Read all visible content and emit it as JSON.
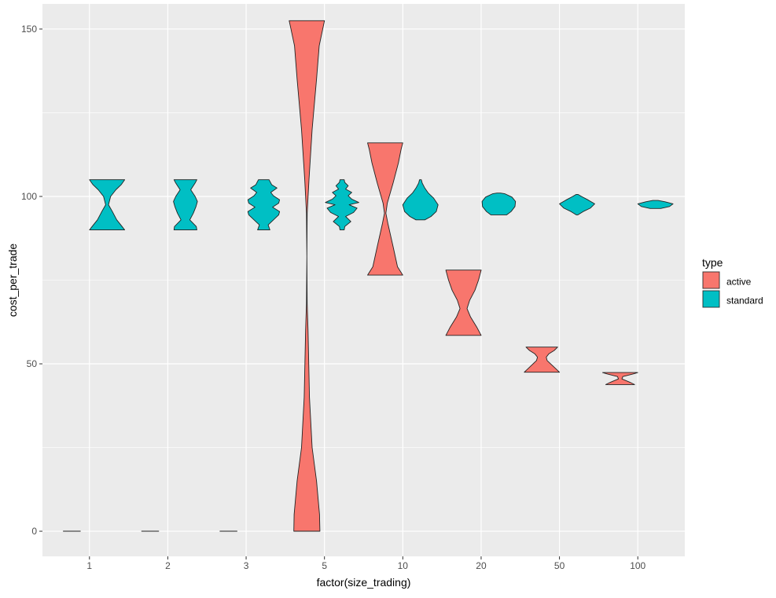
{
  "chart_data": {
    "type": "violin",
    "title": "",
    "xlabel": "factor(size_trading)",
    "ylabel": "cost_per_trade",
    "categories": [
      "1",
      "2",
      "3",
      "5",
      "10",
      "20",
      "50",
      "100"
    ],
    "ylim": [
      -7.5,
      157.5
    ],
    "yticks": [
      0,
      50,
      100,
      150
    ],
    "grid": true,
    "legend": {
      "title": "type",
      "placement": "right",
      "entries": [
        "active",
        "standard"
      ]
    },
    "colors": {
      "active": "#F8766D",
      "standard": "#00BFC4",
      "panel": "#EBEBEB",
      "grid": "#FFFFFF"
    },
    "series": [
      {
        "name": "active",
        "violins": [
          {
            "category": "1",
            "profile": [
              [
                0,
                0.5
              ],
              [
                0,
                0.5
              ]
            ]
          },
          {
            "category": "2",
            "profile": [
              [
                0,
                0.5
              ],
              [
                0,
                0.5
              ]
            ]
          },
          {
            "category": "3",
            "profile": [
              [
                0,
                0.5
              ],
              [
                0,
                0.5
              ]
            ]
          },
          {
            "category": "5",
            "profile": [
              [
                0,
                0.74
              ],
              [
                5,
                0.72
              ],
              [
                15,
                0.55
              ],
              [
                25,
                0.3
              ],
              [
                40,
                0.15
              ],
              [
                60,
                0.07
              ],
              [
                68,
                0.02
              ],
              [
                82,
                0.0
              ],
              [
                95,
                0.02
              ],
              [
                105,
                0.12
              ],
              [
                120,
                0.3
              ],
              [
                135,
                0.55
              ],
              [
                145,
                0.7
              ],
              [
                152.5,
                1.0
              ]
            ]
          },
          {
            "category": "10",
            "profile": [
              [
                76.5,
                1.0
              ],
              [
                79,
                0.7
              ],
              [
                85,
                0.45
              ],
              [
                92,
                0.15
              ],
              [
                95,
                0.04
              ],
              [
                98,
                0.12
              ],
              [
                104,
                0.45
              ],
              [
                110,
                0.75
              ],
              [
                114,
                0.9
              ],
              [
                116,
                1.0
              ]
            ]
          },
          {
            "category": "20",
            "profile": [
              [
                58.5,
                1.0
              ],
              [
                61,
                0.75
              ],
              [
                64,
                0.4
              ],
              [
                66.5,
                0.2
              ],
              [
                69,
                0.35
              ],
              [
                72,
                0.65
              ],
              [
                75,
                0.85
              ],
              [
                78,
                1.0
              ]
            ]
          },
          {
            "category": "50",
            "profile": [
              [
                47.5,
                1.0
              ],
              [
                49,
                0.7
              ],
              [
                51,
                0.3
              ],
              [
                52,
                0.25
              ],
              [
                53,
                0.4
              ],
              [
                54,
                0.7
              ],
              [
                55,
                0.9
              ]
            ]
          },
          {
            "category": "100",
            "profile": [
              [
                43.8,
                0.82
              ],
              [
                44.5,
                0.55
              ],
              [
                45.5,
                0.1
              ],
              [
                46.2,
                0.15
              ],
              [
                47,
                0.75
              ],
              [
                47.4,
                1.0
              ]
            ]
          }
        ]
      },
      {
        "name": "standard",
        "violins": [
          {
            "category": "1",
            "profile": [
              [
                90,
                1.0
              ],
              [
                91,
                0.85
              ],
              [
                93,
                0.55
              ],
              [
                95.5,
                0.3
              ],
              [
                97.5,
                0.08
              ],
              [
                100,
                0.2
              ],
              [
                102,
                0.5
              ],
              [
                103.5,
                0.8
              ],
              [
                105,
                1.0
              ]
            ]
          },
          {
            "category": "2",
            "profile": [
              [
                90,
                0.65
              ],
              [
                91,
                0.62
              ],
              [
                93,
                0.25
              ],
              [
                95,
                0.45
              ],
              [
                97,
                0.6
              ],
              [
                98.5,
                0.68
              ],
              [
                100,
                0.55
              ],
              [
                102,
                0.3
              ],
              [
                104,
                0.55
              ],
              [
                105,
                0.65
              ]
            ]
          },
          {
            "category": "3",
            "profile": [
              [
                90,
                0.35
              ],
              [
                91.5,
                0.25
              ],
              [
                93,
                0.55
              ],
              [
                94.5,
                0.85
              ],
              [
                95.5,
                0.9
              ],
              [
                96.8,
                0.5
              ],
              [
                98,
                0.85
              ],
              [
                99,
                0.9
              ],
              [
                100.2,
                0.55
              ],
              [
                101.2,
                0.4
              ],
              [
                102.5,
                0.75
              ],
              [
                103.5,
                0.45
              ],
              [
                105,
                0.3
              ]
            ]
          },
          {
            "category": "5",
            "profile": [
              [
                90,
                0.12
              ],
              [
                91,
                0.15
              ],
              [
                92.5,
                0.5
              ],
              [
                94,
                0.2
              ],
              [
                95.2,
                0.65
              ],
              [
                96.5,
                0.85
              ],
              [
                97.5,
                0.4
              ],
              [
                98.2,
                0.95
              ],
              [
                99.2,
                0.55
              ],
              [
                100.2,
                0.35
              ],
              [
                101.2,
                0.55
              ],
              [
                102.2,
                0.2
              ],
              [
                103.2,
                0.35
              ],
              [
                104.2,
                0.15
              ],
              [
                105,
                0.12
              ]
            ]
          },
          {
            "category": "10",
            "profile": [
              [
                93,
                0.25
              ],
              [
                94,
                0.6
              ],
              [
                95.5,
                0.9
              ],
              [
                97.5,
                1.0
              ],
              [
                99.5,
                0.75
              ],
              [
                101,
                0.45
              ],
              [
                102.5,
                0.25
              ],
              [
                104,
                0.1
              ],
              [
                105,
                0.05
              ]
            ]
          },
          {
            "category": "20",
            "profile": [
              [
                94.5,
                0.45
              ],
              [
                95.5,
                0.7
              ],
              [
                97,
                0.92
              ],
              [
                98.5,
                0.95
              ],
              [
                99.8,
                0.75
              ],
              [
                100.8,
                0.35
              ],
              [
                101,
                0.1
              ]
            ]
          },
          {
            "category": "50",
            "profile": [
              [
                94.5,
                0.05
              ],
              [
                95.5,
                0.35
              ],
              [
                96.5,
                0.75
              ],
              [
                97.8,
                1.0
              ],
              [
                99,
                0.6
              ],
              [
                100,
                0.25
              ],
              [
                100.6,
                0.05
              ]
            ]
          },
          {
            "category": "100",
            "profile": [
              [
                96.4,
                0.3
              ],
              [
                97,
                0.8
              ],
              [
                97.8,
                1.0
              ],
              [
                98.4,
                0.55
              ],
              [
                98.8,
                0.15
              ]
            ]
          }
        ]
      }
    ]
  }
}
